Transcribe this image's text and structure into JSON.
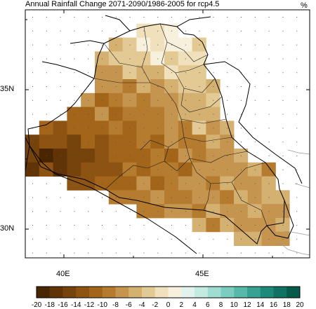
{
  "map": {
    "title": "Annual Rainfall Change 2071-2090/1986-2005 for rcp4.5",
    "unit": "%",
    "lat_labels": [
      "35N",
      "30N"
    ],
    "lon_labels": [
      "40E",
      "45E"
    ],
    "colors": {
      "frame": "#000000",
      "border": "#000000",
      "coast": "#9a9a9a",
      "dots": "#555555"
    }
  },
  "colorbar": {
    "labels": [
      "-20",
      "-18",
      "-16",
      "-14",
      "-12",
      "-10",
      "-8",
      "-6",
      "-4",
      "-2",
      "0",
      "2",
      "4",
      "6",
      "8",
      "10",
      "12",
      "14",
      "16",
      "18",
      "20"
    ],
    "colors": [
      "#4a2502",
      "#603406",
      "#76430c",
      "#8c5312",
      "#a2651a",
      "#b57b2f",
      "#c59550",
      "#d4b071",
      "#e3c993",
      "#f0e0bb",
      "#f7f0dc",
      "#e0f3ee",
      "#c3ebe2",
      "#a0ddd1",
      "#7acdbf",
      "#56b9a9",
      "#38a292",
      "#1d8a79",
      "#0f7262",
      "#065a4c"
    ]
  }
}
